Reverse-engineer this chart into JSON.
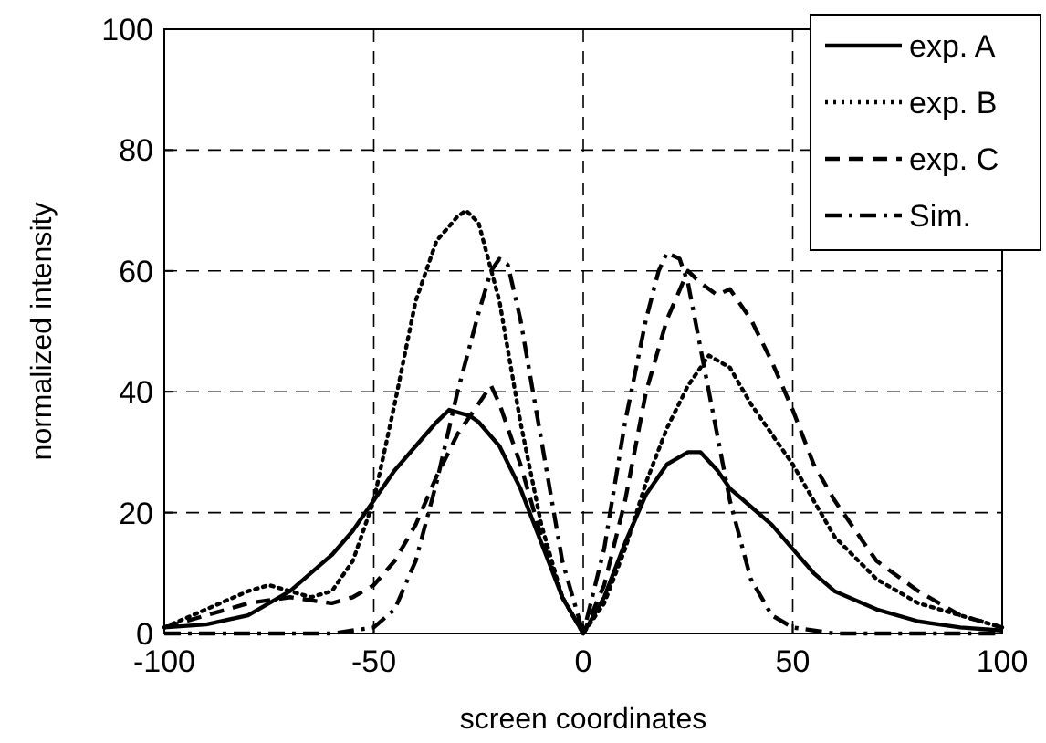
{
  "chart_data": {
    "type": "line",
    "xlabel": "screen coordinates",
    "ylabel": "normalized intensity",
    "xlim": [
      -100,
      100
    ],
    "ylim": [
      0,
      100
    ],
    "xticks": [
      -100,
      -50,
      0,
      50,
      100
    ],
    "yticks": [
      0,
      20,
      40,
      60,
      80,
      100
    ],
    "grid": true,
    "legend": "top right",
    "marker": "none",
    "series": [
      {
        "name": "exp. A",
        "color": "#000000",
        "line_style": "solid",
        "x": [
          -100,
          -90,
          -80,
          -70,
          -60,
          -55,
          -50,
          -45,
          -40,
          -35,
          -32,
          -27,
          -25,
          -20,
          -15,
          -10,
          -5,
          0,
          5,
          10,
          15,
          20,
          25,
          28,
          32,
          35,
          40,
          45,
          50,
          55,
          60,
          70,
          80,
          90,
          100
        ],
        "values": [
          1,
          1.5,
          3,
          7,
          13,
          17,
          22,
          27,
          31,
          35,
          37,
          36,
          35,
          31,
          24,
          15,
          6,
          0,
          6,
          15,
          23,
          28,
          30,
          30,
          27,
          24,
          21,
          18,
          14,
          10,
          7,
          4,
          2,
          1,
          0.5
        ]
      },
      {
        "name": "exp. B",
        "color": "#000000",
        "line_style": "dotted",
        "x": [
          -100,
          -90,
          -80,
          -75,
          -70,
          -65,
          -60,
          -55,
          -50,
          -45,
          -40,
          -35,
          -30,
          -28,
          -25,
          -20,
          -15,
          -10,
          -5,
          0,
          5,
          10,
          15,
          20,
          25,
          30,
          35,
          40,
          45,
          50,
          55,
          60,
          70,
          80,
          90,
          100
        ],
        "values": [
          1,
          4,
          7,
          8,
          7,
          6,
          7,
          12,
          22,
          38,
          55,
          65,
          69,
          70,
          68,
          55,
          35,
          18,
          6,
          0,
          5,
          14,
          25,
          34,
          41,
          46,
          44,
          38,
          33,
          28,
          22,
          16,
          9,
          5,
          3,
          1
        ]
      },
      {
        "name": "exp. C",
        "color": "#000000",
        "line_style": "dashed",
        "x": [
          -100,
          -90,
          -80,
          -70,
          -60,
          -55,
          -50,
          -45,
          -40,
          -35,
          -30,
          -25,
          -22,
          -20,
          -15,
          -10,
          -5,
          0,
          5,
          10,
          15,
          20,
          25,
          28,
          32,
          35,
          40,
          45,
          50,
          55,
          60,
          70,
          80,
          90,
          100
        ],
        "values": [
          1,
          3,
          5,
          6,
          5,
          6,
          8,
          12,
          18,
          26,
          33,
          38,
          41,
          38,
          28,
          16,
          6,
          0,
          8,
          22,
          40,
          52,
          60,
          58,
          56,
          57,
          52,
          45,
          37,
          28,
          22,
          12,
          7,
          3,
          1
        ]
      },
      {
        "name": "Sim.",
        "color": "#000000",
        "line_style": "dashdot",
        "x": [
          -100,
          -60,
          -50,
          -45,
          -40,
          -35,
          -30,
          -25,
          -22,
          -20,
          -18,
          -15,
          -10,
          -5,
          0,
          5,
          10,
          15,
          18,
          20,
          23,
          25,
          30,
          35,
          40,
          45,
          50,
          60,
          100
        ],
        "values": [
          0,
          0,
          1,
          4,
          12,
          25,
          40,
          53,
          60,
          62,
          61,
          52,
          32,
          12,
          0,
          14,
          35,
          52,
          60,
          63,
          62,
          58,
          40,
          22,
          9,
          3,
          1,
          0,
          0
        ]
      }
    ]
  }
}
